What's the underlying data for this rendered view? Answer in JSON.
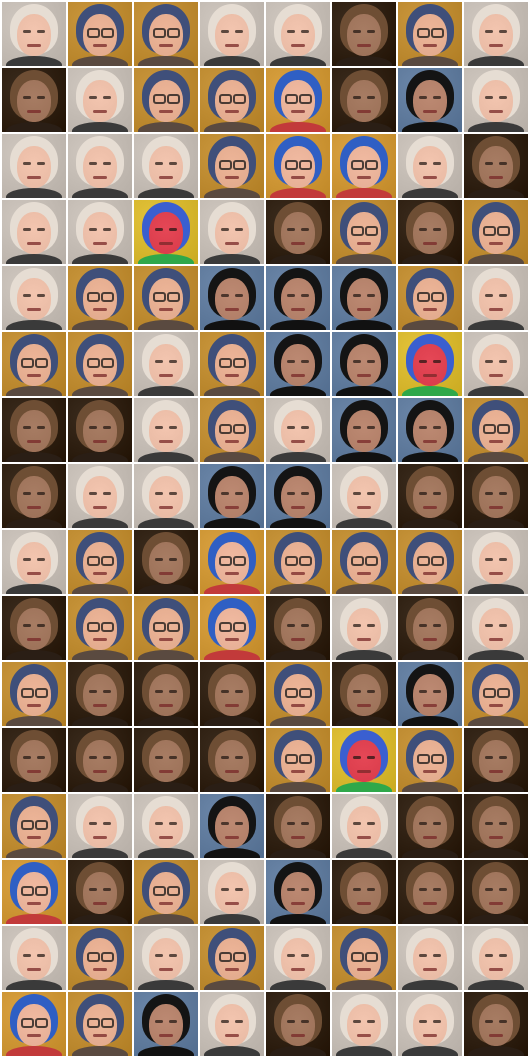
{
  "grid": {
    "rows": 16,
    "cols": 8,
    "tiles": [
      [
        "blond",
        "glasses",
        "glasses",
        "blond",
        "blond",
        "brunette",
        "glasses",
        "blond"
      ],
      [
        "brunette",
        "blond",
        "glasses",
        "glasses",
        "bluehair",
        "brunette",
        "darkhair",
        "blond"
      ],
      [
        "blond",
        "blond",
        "blond",
        "glasses",
        "bluehair",
        "bluehair",
        "blond",
        "brunette"
      ],
      [
        "blond",
        "blond",
        "colorful",
        "blond",
        "brunette",
        "glasses",
        "brunette",
        "glasses"
      ],
      [
        "blond",
        "glasses",
        "glasses",
        "darkhair",
        "darkhair",
        "darkhair",
        "glasses",
        "blond"
      ],
      [
        "glasses",
        "glasses",
        "blond",
        "glasses",
        "darkhair",
        "darkhair",
        "colorful",
        "blond"
      ],
      [
        "brunette",
        "brunette",
        "blond",
        "glasses",
        "blond",
        "darkhair",
        "darkhair",
        "glasses"
      ],
      [
        "brunette",
        "blond",
        "blond",
        "darkhair",
        "darkhair",
        "blond",
        "brunette",
        "brunette"
      ],
      [
        "blond",
        "glasses",
        "brunette",
        "bluehair",
        "glasses",
        "glasses",
        "glasses",
        "blond"
      ],
      [
        "brunette",
        "glasses",
        "glasses",
        "bluehair",
        "brunette",
        "blond",
        "brunette",
        "blond"
      ],
      [
        "glasses",
        "brunette",
        "brunette",
        "brunette",
        "glasses",
        "brunette",
        "darkhair",
        "glasses"
      ],
      [
        "brunette",
        "brunette",
        "brunette",
        "brunette",
        "glasses",
        "colorful",
        "glasses",
        "brunette"
      ],
      [
        "glasses",
        "blond",
        "blond",
        "darkhair",
        "brunette",
        "blond",
        "brunette",
        "brunette"
      ],
      [
        "bluehair",
        "brunette",
        "glasses",
        "blond",
        "darkhair",
        "brunette",
        "brunette",
        "brunette"
      ],
      [
        "blond",
        "glasses",
        "blond",
        "glasses",
        "blond",
        "glasses",
        "blond",
        "blond"
      ],
      [
        "bluehair",
        "glasses",
        "darkhair",
        "blond",
        "brunette",
        "blond",
        "blond",
        "brunette"
      ]
    ]
  },
  "palette": {
    "blond": {
      "bg": "#cfc7bf",
      "hair": "#e6ddd3",
      "face": "#e7b9a3",
      "cloth": "#3a3a3a",
      "glasses": false
    },
    "glasses": {
      "bg": "#c9963c",
      "hair": "#3f4f7a",
      "face": "#e1a98c",
      "cloth": "#5a4a40",
      "glasses": true
    },
    "brunette": {
      "bg": "#3a2b1d",
      "hair": "#6e4e34",
      "face": "#9b7057",
      "cloth": "#2a1e15",
      "glasses": false
    },
    "darkhair": {
      "bg": "#6b86a8",
      "hair": "#141414",
      "face": "#b07d66",
      "cloth": "#111111",
      "glasses": false
    },
    "bluehair": {
      "bg": "#d9a140",
      "hair": "#2f5fc4",
      "face": "#e5ae95",
      "cloth": "#c23a3a",
      "glasses": true
    },
    "colorful": {
      "bg": "#e3c33a",
      "hair": "#3a5fd0",
      "face": "#d93b4a",
      "cloth": "#2fa84a",
      "glasses": false
    }
  }
}
